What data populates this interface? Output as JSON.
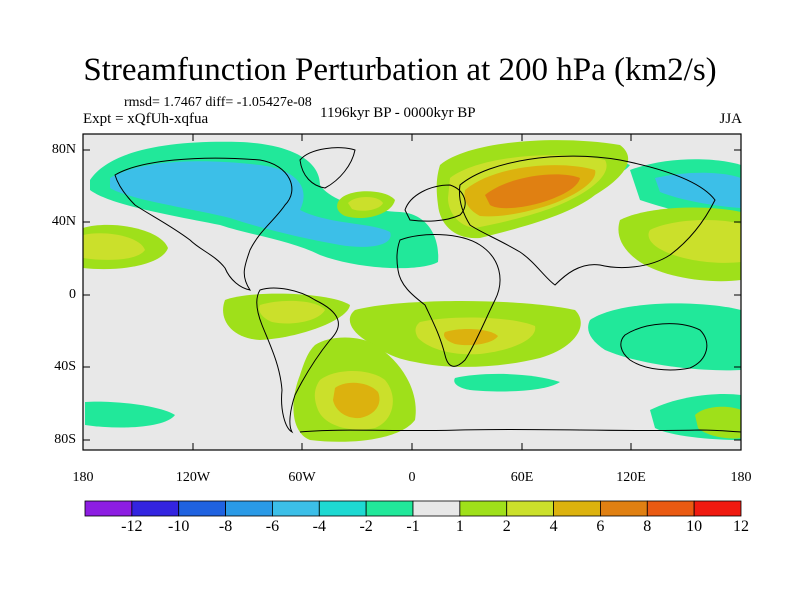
{
  "title": "Streamfunction Perturbation at 200 hPa (km2/s)",
  "stats_text": "rmsd= 1.7467 diff= -1.05427e-08",
  "experiment_text": "Expt = xQfUh-xqfua",
  "period_text": "1196kyr BP - 0000kyr BP",
  "season_text": "JJA",
  "lat_ticks": [
    "80N",
    "40N",
    "0",
    "40S",
    "80S"
  ],
  "lon_ticks": [
    "180",
    "120W",
    "60W",
    "0",
    "60E",
    "120E",
    "180"
  ],
  "colorbar": {
    "labels": [
      "-12",
      "-10",
      "-8",
      "-6",
      "-4",
      "-2",
      "-1",
      "1",
      "2",
      "4",
      "6",
      "8",
      "10",
      "12"
    ],
    "colors": [
      "#8d1de2",
      "#3324e0",
      "#1f62e0",
      "#2a9ae6",
      "#3cbfe8",
      "#1ed9d2",
      "#21e89a",
      "#e8e8e8",
      "#9fe01a",
      "#cbe02b",
      "#dcb20e",
      "#e08012",
      "#ea5a12",
      "#f01a10"
    ]
  },
  "colors": {
    "neutral": "#e8e8e8",
    "pos1": "#9fe01a",
    "pos2": "#cbe02b",
    "pos3": "#dcb20e",
    "pos4": "#e08012",
    "neg1": "#21e89a",
    "neg2": "#1ed9d2",
    "neg3": "#3cbfe8"
  }
}
